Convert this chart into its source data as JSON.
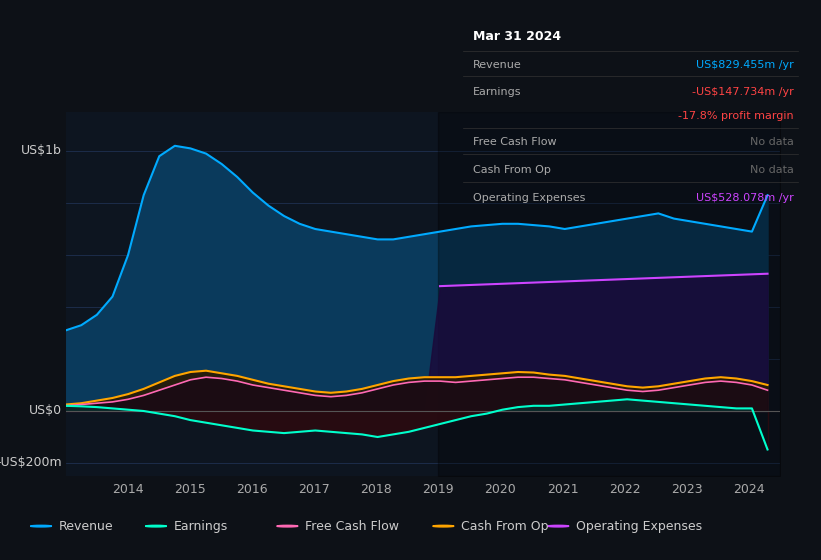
{
  "bg_color": "#0d1117",
  "plot_bg_color": "#0d1520",
  "revenue_color": "#00aaff",
  "revenue_fill": "#0a3a5c",
  "earnings_color": "#00ffcc",
  "earnings_fill_neg": "#2a0a10",
  "earnings_fill_pos": "#0a2a2a",
  "free_cash_flow_color": "#ff69b4",
  "free_cash_flow_fill": "#1a0a15",
  "cash_from_op_color": "#ffa500",
  "cash_from_op_fill": "#2a1a05",
  "op_expenses_color": "#cc44ff",
  "op_expenses_fill": "#1a0a3a",
  "legend_items": [
    "Revenue",
    "Earnings",
    "Free Cash Flow",
    "Cash From Op",
    "Operating Expenses"
  ],
  "legend_colors": [
    "#00aaff",
    "#00ffcc",
    "#ff69b4",
    "#ffa500",
    "#cc44ff"
  ],
  "tooltip_title": "Mar 31 2024",
  "tooltip_revenue": "US$829.455m /yr",
  "tooltip_earnings": "-US$147.734m /yr",
  "tooltip_margin": "-17.8% profit margin",
  "tooltip_fcf": "No data",
  "tooltip_cfo": "No data",
  "tooltip_opex": "US$528.078m /yr",
  "grid_color": "#1e3050"
}
